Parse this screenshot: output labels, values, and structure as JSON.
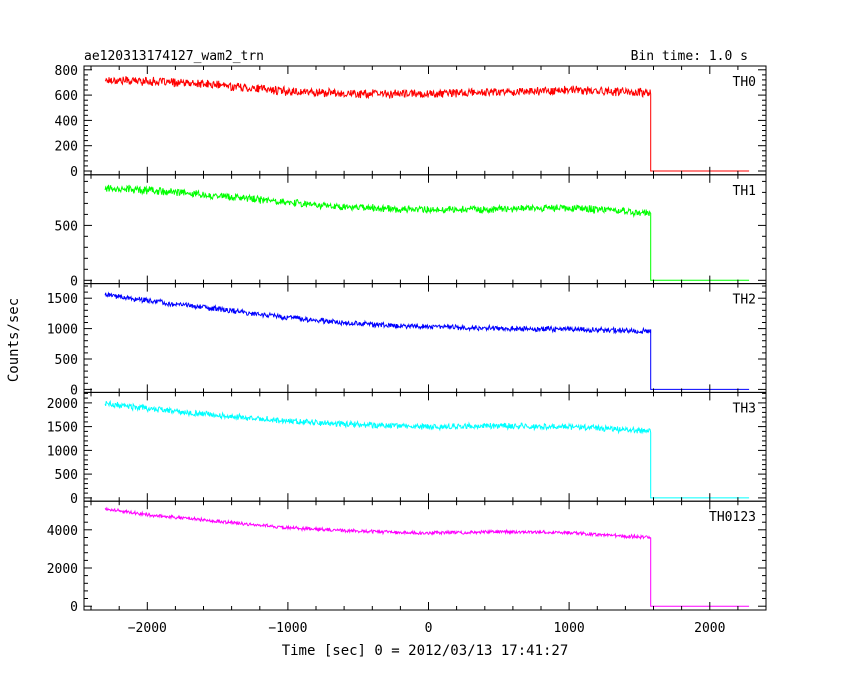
{
  "header": {
    "left": "ae120313174127_wam2_trn",
    "right": "Bin time: 1.0 s"
  },
  "chart_data": {
    "type": "line",
    "title": "ae120313174127_wam2_trn",
    "bin_time_label": "Bin time: 1.0 s",
    "xlabel": "Time [sec] 0 = 2012/03/13 17:41:27",
    "ylabel": "Counts/sec",
    "xlim": [
      -2450,
      2400
    ],
    "xticks": [
      -2000,
      -1000,
      0,
      1000,
      2000
    ],
    "xtick_labels": [
      "−2000",
      "−1000",
      "0",
      "1000",
      "2000"
    ],
    "cutoff_time": 1580,
    "end_time": 2280,
    "start_time": -2300,
    "grid": false,
    "panels": [
      {
        "name": "TH0",
        "color": "#ff0000",
        "ylim": [
          -30,
          830
        ],
        "yticks": [
          0,
          200,
          400,
          600,
          800
        ],
        "x": [
          -2300,
          -2000,
          -1500,
          -1000,
          -500,
          0,
          500,
          1000,
          1500,
          1580
        ],
        "values": [
          720,
          710,
          680,
          630,
          610,
          610,
          625,
          640,
          620,
          620
        ],
        "noise": 30
      },
      {
        "name": "TH1",
        "color": "#00ff00",
        "ylim": [
          -30,
          960
        ],
        "yticks": [
          0,
          500
        ],
        "x": [
          -2300,
          -2000,
          -1500,
          -1000,
          -500,
          0,
          500,
          1000,
          1500,
          1580
        ],
        "values": [
          840,
          820,
          770,
          710,
          660,
          640,
          650,
          660,
          620,
          610
        ],
        "noise": 30
      },
      {
        "name": "TH2",
        "color": "#0000ff",
        "ylim": [
          -50,
          1740
        ],
        "yticks": [
          0,
          500,
          1000,
          1500
        ],
        "x": [
          -2300,
          -2000,
          -1500,
          -1000,
          -500,
          0,
          500,
          1000,
          1500,
          1580
        ],
        "values": [
          1560,
          1460,
          1320,
          1180,
          1080,
          1030,
          1000,
          990,
          960,
          950
        ],
        "noise": 38
      },
      {
        "name": "TH3",
        "color": "#00ffff",
        "ylim": [
          -70,
          2220
        ],
        "yticks": [
          0,
          500,
          1000,
          1500,
          2000
        ],
        "x": [
          -2300,
          -2000,
          -1500,
          -1000,
          -500,
          0,
          500,
          1000,
          1500,
          1580
        ],
        "values": [
          1980,
          1880,
          1740,
          1620,
          1540,
          1500,
          1510,
          1500,
          1420,
          1410
        ],
        "noise": 55
      },
      {
        "name": "TH0123",
        "color": "#ff00ff",
        "ylim": [
          -200,
          5500
        ],
        "yticks": [
          0,
          2000,
          4000
        ],
        "x": [
          -2300,
          -2000,
          -1500,
          -1000,
          -500,
          0,
          500,
          1000,
          1500,
          1580
        ],
        "values": [
          5100,
          4800,
          4450,
          4100,
          3930,
          3830,
          3900,
          3850,
          3620,
          3600
        ],
        "noise": 80
      }
    ]
  }
}
